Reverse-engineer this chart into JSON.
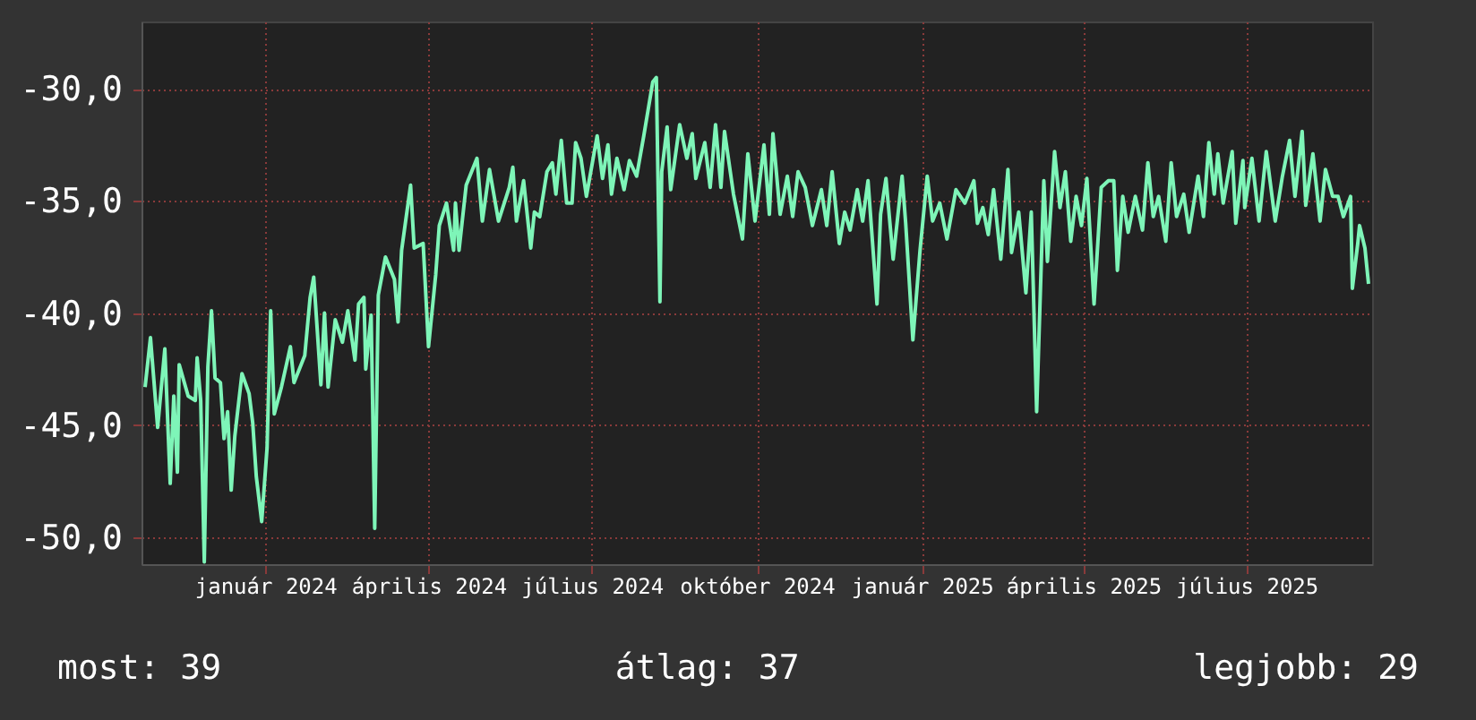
{
  "chart_data": {
    "type": "line",
    "x": [
      "2023-10-26",
      "2023-10-29",
      "2023-11-02",
      "2023-11-06",
      "2023-11-09",
      "2023-11-11",
      "2023-11-13",
      "2023-11-14",
      "2023-11-19",
      "2023-11-23",
      "2023-11-24",
      "2023-11-26",
      "2023-11-28",
      "2023-11-30",
      "2023-12-02",
      "2023-12-04",
      "2023-12-07",
      "2023-12-09",
      "2023-12-11",
      "2023-12-13",
      "2023-12-15",
      "2023-12-19",
      "2023-12-23",
      "2023-12-25",
      "2023-12-27",
      "2023-12-30",
      "2024-01-02",
      "2024-01-04",
      "2024-01-06",
      "2024-01-10",
      "2024-01-15",
      "2024-01-17",
      "2024-01-23",
      "2024-01-26",
      "2024-01-28",
      "2024-02-01",
      "2024-02-03",
      "2024-02-05",
      "2024-02-09",
      "2024-02-13",
      "2024-02-16",
      "2024-02-20",
      "2024-02-22",
      "2024-02-25",
      "2024-02-26",
      "2024-02-29",
      "2024-03-02",
      "2024-03-04",
      "2024-03-08",
      "2024-03-13",
      "2024-03-15",
      "2024-03-17",
      "2024-03-22",
      "2024-03-24",
      "2024-03-29",
      "2024-04-01",
      "2024-04-05",
      "2024-04-07",
      "2024-04-11",
      "2024-04-15",
      "2024-04-16",
      "2024-04-18",
      "2024-04-22",
      "2024-04-28",
      "2024-05-01",
      "2024-05-05",
      "2024-05-10",
      "2024-05-16",
      "2024-05-18",
      "2024-05-20",
      "2024-05-24",
      "2024-05-28",
      "2024-05-30",
      "2024-06-02",
      "2024-06-06",
      "2024-06-09",
      "2024-06-11",
      "2024-06-14",
      "2024-06-17",
      "2024-06-20",
      "2024-06-22",
      "2024-06-25",
      "2024-06-28",
      "2024-07-04",
      "2024-07-07",
      "2024-07-10",
      "2024-07-12",
      "2024-07-15",
      "2024-07-19",
      "2024-07-22",
      "2024-07-26",
      "2024-07-30",
      "2024-08-04",
      "2024-08-06",
      "2024-08-08",
      "2024-08-09",
      "2024-08-12",
      "2024-08-14",
      "2024-08-19",
      "2024-08-23",
      "2024-08-26",
      "2024-08-28",
      "2024-09-02",
      "2024-09-05",
      "2024-09-08",
      "2024-09-11",
      "2024-09-13",
      "2024-09-18",
      "2024-09-23",
      "2024-09-26",
      "2024-09-30",
      "2024-10-05",
      "2024-10-08",
      "2024-10-10",
      "2024-10-14",
      "2024-10-18",
      "2024-10-21",
      "2024-10-24",
      "2024-10-28",
      "2024-11-01",
      "2024-11-06",
      "2024-11-09",
      "2024-11-12",
      "2024-11-16",
      "2024-11-19",
      "2024-11-22",
      "2024-11-26",
      "2024-11-29",
      "2024-12-02",
      "2024-12-07",
      "2024-12-09",
      "2024-12-12",
      "2024-12-16",
      "2024-12-21",
      "2024-12-23",
      "2024-12-27",
      "2024-12-31",
      "2025-01-04",
      "2025-01-07",
      "2025-01-11",
      "2025-01-15",
      "2025-01-20",
      "2025-01-25",
      "2025-01-30",
      "2025-02-01",
      "2025-02-04",
      "2025-02-07",
      "2025-02-10",
      "2025-02-14",
      "2025-02-18",
      "2025-02-20",
      "2025-02-24",
      "2025-02-28",
      "2025-03-03",
      "2025-03-06",
      "2025-03-10",
      "2025-03-12",
      "2025-03-16",
      "2025-03-19",
      "2025-03-22",
      "2025-03-25",
      "2025-03-28",
      "2025-03-31",
      "2025-04-03",
      "2025-04-07",
      "2025-04-11",
      "2025-04-15",
      "2025-04-18",
      "2025-04-20",
      "2025-04-23",
      "2025-04-26",
      "2025-04-30",
      "2025-05-04",
      "2025-05-07",
      "2025-05-10",
      "2025-05-13",
      "2025-05-17",
      "2025-05-20",
      "2025-05-23",
      "2025-05-27",
      "2025-05-30",
      "2025-06-04",
      "2025-06-07",
      "2025-06-10",
      "2025-06-13",
      "2025-06-15",
      "2025-06-18",
      "2025-06-23",
      "2025-06-25",
      "2025-06-29",
      "2025-06-30",
      "2025-07-04",
      "2025-07-08",
      "2025-07-12",
      "2025-07-17",
      "2025-07-21",
      "2025-07-25",
      "2025-07-28",
      "2025-08-01",
      "2025-08-03",
      "2025-08-07",
      "2025-08-11",
      "2025-08-14",
      "2025-08-18",
      "2025-08-21",
      "2025-08-24",
      "2025-08-28",
      "2025-08-29",
      "2025-09-01",
      "2025-09-02",
      "2025-09-05",
      "2025-09-07"
    ],
    "series": [
      {
        "color": "#7ef5b8",
        "values": [
          -43.3,
          -41.1,
          -45.1,
          -41.6,
          -47.6,
          -43.7,
          -47.1,
          -42.3,
          -43.7,
          -43.9,
          -42.0,
          -43.9,
          -51.1,
          -42.4,
          -39.9,
          -42.9,
          -43.1,
          -45.6,
          -44.4,
          -47.9,
          -45.5,
          -42.7,
          -43.6,
          -44.9,
          -47.3,
          -49.3,
          -46.0,
          -39.9,
          -44.5,
          -43.3,
          -41.5,
          -43.1,
          -41.9,
          -39.3,
          -38.4,
          -43.2,
          -40.0,
          -43.3,
          -40.3,
          -41.3,
          -39.9,
          -42.1,
          -39.6,
          -39.3,
          -42.5,
          -40.1,
          -49.6,
          -39.2,
          -37.5,
          -38.5,
          -40.4,
          -37.2,
          -34.3,
          -37.1,
          -36.9,
          -41.5,
          -38.3,
          -36.1,
          -35.1,
          -37.2,
          -35.1,
          -37.2,
          -34.3,
          -33.1,
          -35.9,
          -33.6,
          -35.9,
          -34.4,
          -33.5,
          -35.9,
          -34.1,
          -37.1,
          -35.5,
          -35.7,
          -33.7,
          -33.3,
          -34.7,
          -32.3,
          -35.1,
          -35.1,
          -32.4,
          -33.1,
          -34.8,
          -32.1,
          -34.0,
          -32.5,
          -34.7,
          -33.1,
          -34.5,
          -33.2,
          -33.9,
          -32.1,
          -29.7,
          -29.5,
          -39.5,
          -33.7,
          -31.7,
          -34.5,
          -31.6,
          -33.1,
          -32.0,
          -34.0,
          -32.4,
          -34.4,
          -31.6,
          -34.4,
          -31.9,
          -34.7,
          -36.7,
          -32.9,
          -35.9,
          -32.5,
          -35.6,
          -32.0,
          -35.6,
          -33.9,
          -35.7,
          -33.7,
          -34.4,
          -36.1,
          -34.5,
          -36.1,
          -33.7,
          -36.9,
          -35.5,
          -36.3,
          -34.5,
          -35.9,
          -34.1,
          -39.6,
          -35.6,
          -34.0,
          -37.6,
          -33.9,
          -36.0,
          -41.2,
          -37.2,
          -33.9,
          -35.9,
          -35.1,
          -36.7,
          -34.5,
          -35.1,
          -34.1,
          -36.0,
          -35.3,
          -36.5,
          -34.5,
          -37.6,
          -33.6,
          -37.3,
          -35.5,
          -39.1,
          -35.5,
          -44.4,
          -34.1,
          -37.7,
          -32.8,
          -35.3,
          -33.7,
          -36.8,
          -34.8,
          -36.1,
          -34.0,
          -39.6,
          -34.4,
          -34.1,
          -34.1,
          -38.1,
          -34.8,
          -36.4,
          -34.8,
          -36.3,
          -33.3,
          -35.7,
          -34.8,
          -36.8,
          -33.3,
          -35.7,
          -34.7,
          -36.4,
          -33.9,
          -35.7,
          -32.4,
          -34.7,
          -32.9,
          -35.1,
          -32.8,
          -36.0,
          -33.2,
          -35.3,
          -33.1,
          -35.9,
          -32.8,
          -35.9,
          -33.9,
          -32.3,
          -34.8,
          -31.9,
          -35.2,
          -32.9,
          -35.9,
          -33.6,
          -34.8,
          -34.8,
          -35.7,
          -34.8,
          -38.9,
          -36.9,
          -36.1,
          -37.1,
          -38.7
        ]
      }
    ],
    "xlim": [
      "2023-10-24",
      "2025-09-09"
    ],
    "xticks": [
      {
        "value": "2024-01-01",
        "label": "január 2024"
      },
      {
        "value": "2024-04-01",
        "label": "április 2024"
      },
      {
        "value": "2024-07-01",
        "label": "július 2024"
      },
      {
        "value": "2024-10-01",
        "label": "október 2024"
      },
      {
        "value": "2025-01-01",
        "label": "január 2025"
      },
      {
        "value": "2025-04-01",
        "label": "április 2025"
      },
      {
        "value": "2025-07-01",
        "label": "július 2025"
      }
    ],
    "ylim": [
      -51.2,
      -27
    ],
    "yticks": [
      {
        "value": -50,
        "label": "-50,0"
      },
      {
        "value": -45,
        "label": "-45,0"
      },
      {
        "value": -40,
        "label": "-40,0"
      },
      {
        "value": -35,
        "label": "-35,0"
      },
      {
        "value": -30,
        "label": "-30,0"
      }
    ],
    "grid": true,
    "annotations": [
      "most: 39",
      "átlag: 37",
      "legjobb: 29"
    ]
  }
}
